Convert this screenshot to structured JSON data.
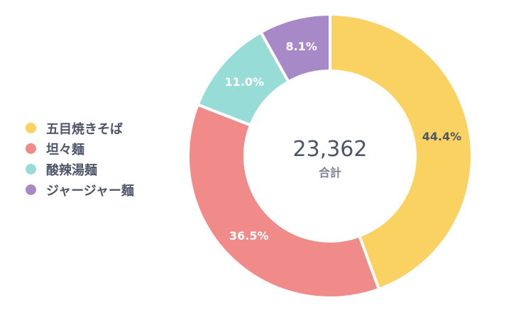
{
  "chart_data": {
    "type": "pie",
    "donut": true,
    "legend_position": "left",
    "categories": [
      "五目焼きそば",
      "坦々麺",
      "酸辣湯麺",
      "ジャージャー麺"
    ],
    "values": [
      44.4,
      36.5,
      11.0,
      8.1
    ],
    "value_labels": [
      "44.4%",
      "36.5%",
      "11.0%",
      "8.1%"
    ],
    "colors": [
      "#f9d262",
      "#f08b8a",
      "#98dcd8",
      "#a889c8"
    ],
    "label_colors": [
      "#4d5568",
      "#ffffff",
      "#ffffff",
      "#ffffff"
    ],
    "center_total": "23,362",
    "center_label": "合計"
  }
}
